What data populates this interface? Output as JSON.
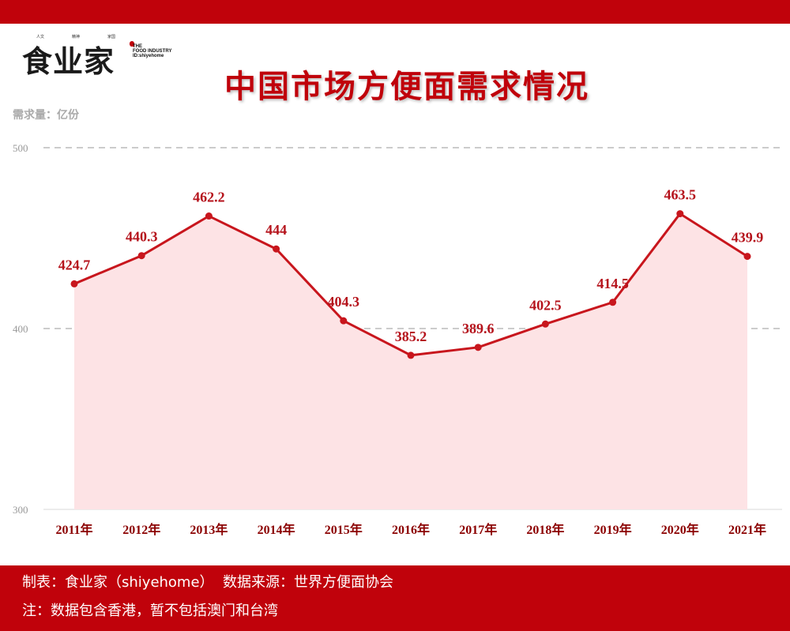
{
  "header": {
    "logo_text": "食业家",
    "logo_small": [
      "人文",
      "精神",
      "家国"
    ],
    "logo_en": [
      "THE",
      "FOOD INDUSTRY",
      "ID:shiyehome"
    ]
  },
  "chart_data": {
    "type": "area",
    "title": "中国市场方便面需求情况",
    "ylabel": "需求量：亿份",
    "xlabel": "",
    "categories": [
      "2011年",
      "2012年",
      "2013年",
      "2014年",
      "2015年",
      "2016年",
      "2017年",
      "2018年",
      "2019年",
      "2020年",
      "2021年"
    ],
    "values": [
      424.7,
      440.3,
      462.2,
      444,
      404.3,
      385.2,
      389.6,
      402.5,
      414.5,
      463.5,
      439.9
    ],
    "value_labels": [
      "424.7",
      "440.3",
      "462.2",
      "444",
      "404.3",
      "385.2",
      "389.6",
      "402.5",
      "414.5",
      "463.5",
      "439.9"
    ],
    "ylim": [
      300,
      500
    ],
    "yticks": [
      "300",
      "400",
      "500"
    ],
    "grid": true,
    "legend": "none",
    "colors": {
      "line": "#c8161d",
      "fill": "#fde3e5",
      "grid": "#cccccc"
    }
  },
  "footer": {
    "credit": "制表：食业家（shiyehome）  数据来源：世界方便面协会",
    "note": "注：数据包含香港，暂不包括澳门和台湾"
  }
}
